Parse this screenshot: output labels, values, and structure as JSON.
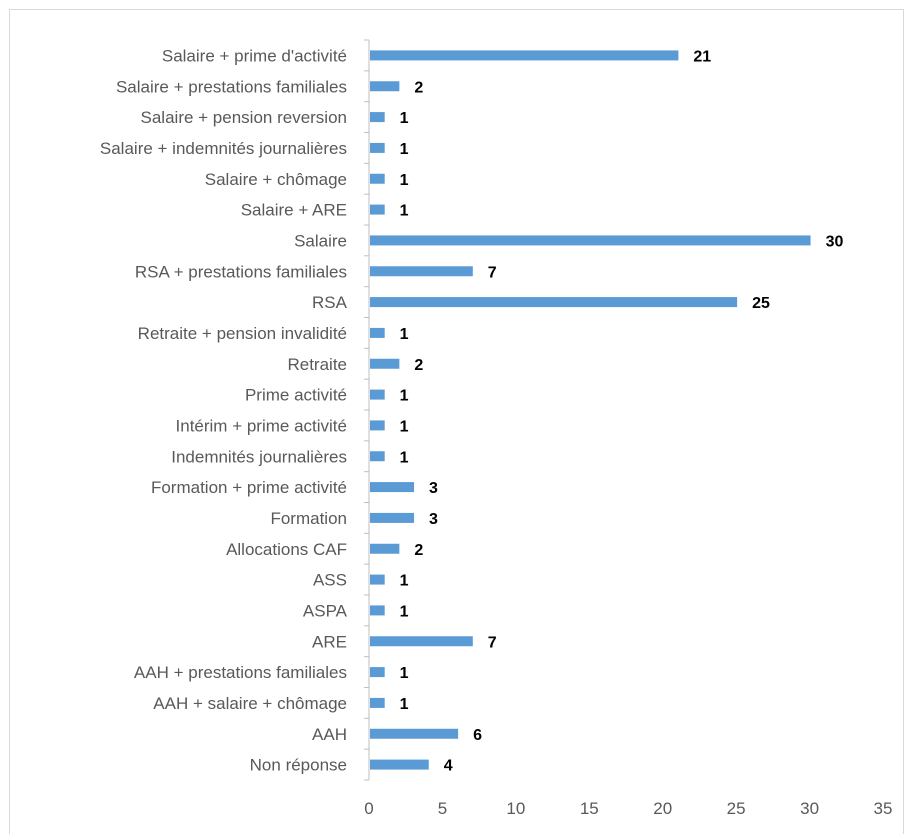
{
  "chart_data": {
    "type": "bar",
    "orientation": "horizontal",
    "categories": [
      "Salaire + prime d'activité",
      "Salaire + prestations familiales",
      "Salaire + pension reversion",
      "Salaire + indemnités journalières",
      "Salaire + chômage",
      "Salaire + ARE",
      "Salaire",
      "RSA + prestations familiales",
      "RSA",
      "Retraite + pension invalidité",
      "Retraite",
      "Prime activité",
      "Intérim + prime activité",
      "Indemnités journalières",
      "Formation + prime activité",
      "Formation",
      "Allocations CAF",
      "ASS",
      "ASPA",
      "ARE",
      "AAH + prestations familiales",
      "AAH + salaire + chômage",
      "AAH",
      "Non réponse"
    ],
    "values": [
      21,
      2,
      1,
      1,
      1,
      1,
      30,
      7,
      25,
      1,
      2,
      1,
      1,
      1,
      3,
      3,
      2,
      1,
      1,
      7,
      1,
      1,
      6,
      4
    ],
    "xlim": [
      0,
      35
    ],
    "xticks": [
      0,
      5,
      10,
      15,
      20,
      25,
      30,
      35
    ],
    "bar_color": "#5b9bd5",
    "data_labels": true,
    "grid": false,
    "title": "",
    "xlabel": "",
    "ylabel": ""
  }
}
